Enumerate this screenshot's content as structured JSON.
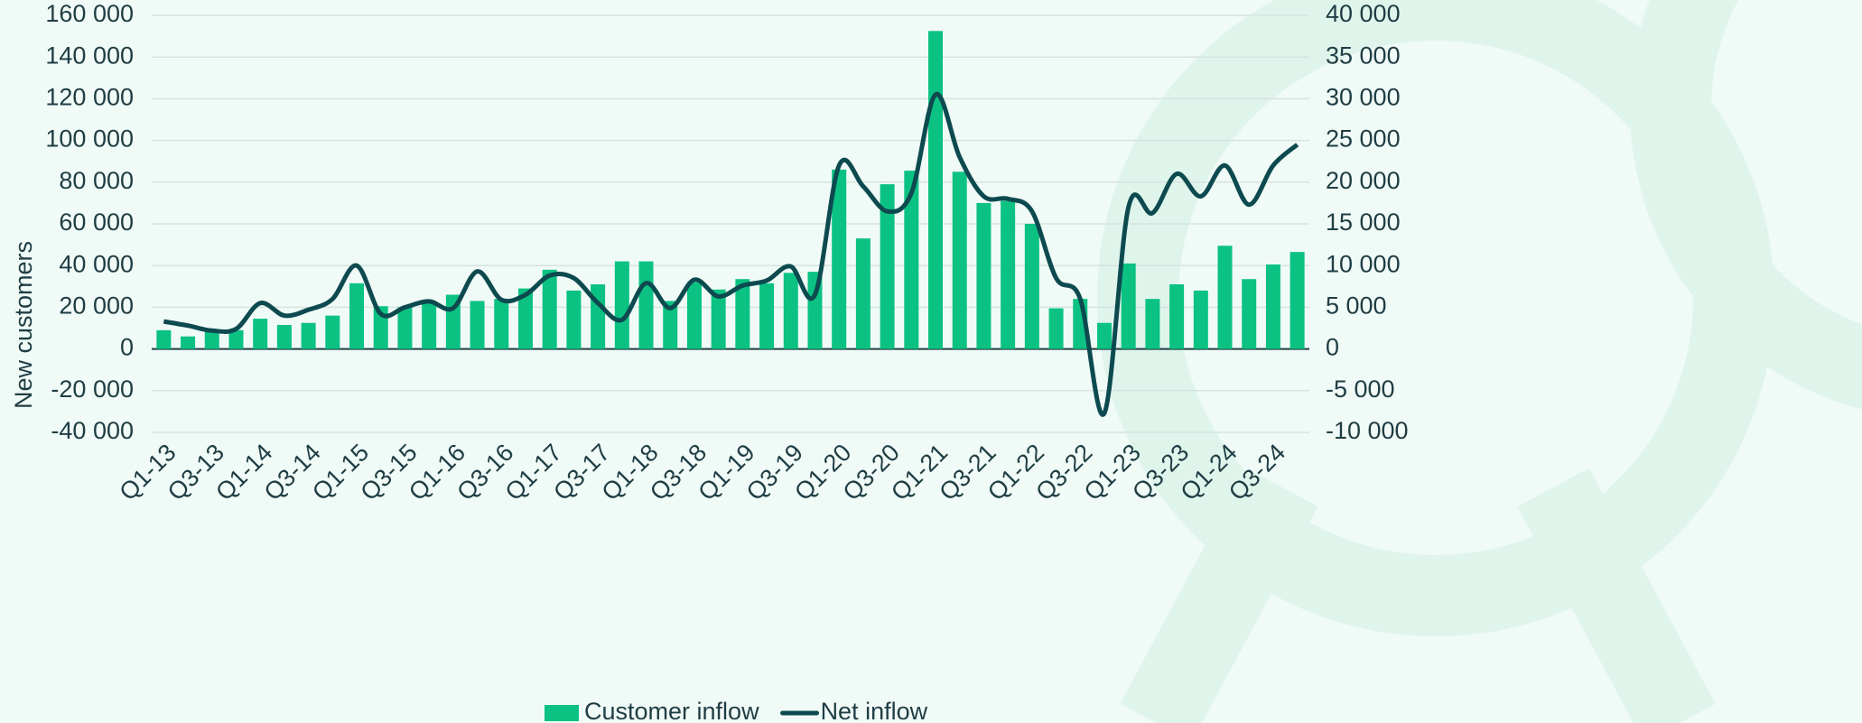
{
  "chart_data": {
    "type": "bar",
    "y_label": "New customers",
    "categories": [
      "Q1-13",
      null,
      "Q3-13",
      null,
      "Q1-14",
      null,
      "Q3-14",
      null,
      "Q1-15",
      null,
      "Q3-15",
      null,
      "Q1-16",
      null,
      "Q3-16",
      null,
      "Q1-17",
      null,
      "Q3-17",
      null,
      "Q1-18",
      null,
      "Q3-18",
      null,
      "Q1-19",
      null,
      "Q3-19",
      null,
      "Q1-20",
      null,
      "Q3-20",
      null,
      "Q1-21",
      null,
      "Q3-21",
      null,
      "Q1-22",
      null,
      "Q3-22",
      null,
      "Q1-23",
      null,
      "Q3-23",
      null,
      "Q1-24",
      null,
      "Q3-24",
      null
    ],
    "series": [
      {
        "name": "Customer inflow",
        "type": "bar",
        "color": "#0bc283",
        "values": [
          9000,
          6000,
          9000,
          9000,
          14500,
          11500,
          12500,
          16000,
          31500,
          20500,
          20000,
          22000,
          26000,
          23000,
          24000,
          29000,
          38000,
          28000,
          31000,
          42000,
          42000,
          23000,
          32000,
          28500,
          33500,
          31500,
          36500,
          37000,
          86000,
          53000,
          79000,
          85500,
          152500,
          85000,
          70000,
          71000,
          60000,
          19500,
          24000,
          12500,
          41000,
          24000,
          31000,
          28000,
          49500,
          33500,
          40500,
          46500
        ]
      },
      {
        "name": "Net inflow",
        "type": "line",
        "axis": "y2",
        "color": "#0d4a4f",
        "values": [
          3300,
          2800,
          2200,
          2400,
          5500,
          4000,
          4700,
          6000,
          10000,
          4200,
          5000,
          5700,
          4900,
          9300,
          5900,
          6500,
          8800,
          8500,
          5500,
          3500,
          7900,
          4900,
          8300,
          6300,
          7600,
          8200,
          9900,
          6500,
          22000,
          19500,
          16500,
          18700,
          30500,
          23000,
          18300,
          18000,
          16500,
          8500,
          6000,
          -7700,
          17000,
          16300,
          21000,
          18300,
          22000,
          17300,
          22000,
          24500
        ]
      }
    ],
    "ylim": [
      -40000,
      160000
    ],
    "yticks": [
      {
        "value": -40000,
        "label": "-40 000"
      },
      {
        "value": -20000,
        "label": "-20 000"
      },
      0,
      {
        "value": 20000,
        "label": "20 000"
      },
      {
        "value": 40000,
        "label": "40 000"
      },
      {
        "value": 60000,
        "label": "60 000"
      },
      {
        "value": 80000,
        "label": "80 000"
      },
      {
        "value": 100000,
        "label": "100 000"
      },
      {
        "value": 120000,
        "label": "120 000"
      },
      {
        "value": 140000,
        "label": "140 000"
      },
      {
        "value": 160000,
        "label": "160 000"
      }
    ],
    "y2lim": [
      -10000,
      40000
    ],
    "y2ticks": [
      {
        "value": -10000,
        "label": "-10 000"
      },
      {
        "value": -5000,
        "label": "-5 000"
      },
      0,
      {
        "value": 5000,
        "label": "5 000"
      },
      {
        "value": 10000,
        "label": "10 000"
      },
      {
        "value": 15000,
        "label": "15 000"
      },
      {
        "value": 20000,
        "label": "20 000"
      },
      {
        "value": 25000,
        "label": "25 000"
      },
      {
        "value": 30000,
        "label": "30 000"
      },
      {
        "value": 35000,
        "label": "35 000"
      },
      {
        "value": 40000,
        "label": "40 000"
      }
    ],
    "grid": true,
    "legend": "bottom"
  }
}
